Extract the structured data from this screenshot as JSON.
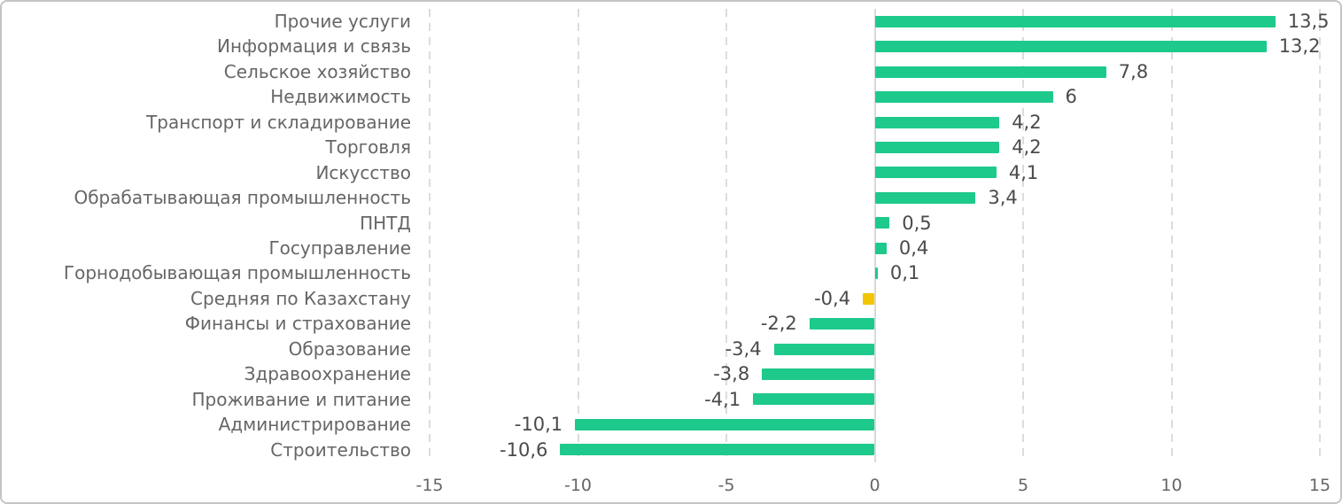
{
  "chart_data": {
    "type": "bar",
    "orientation": "horizontal",
    "title": "",
    "xlabel": "",
    "ylabel": "",
    "xlim": [
      -15,
      15
    ],
    "grid": "dashed-vertical",
    "decimal_separator": ",",
    "categories": [
      "Прочие услуги",
      "Информация и связь",
      "Сельское хозяйство",
      "Недвижимость",
      "Транспорт и складирование",
      "Торговля",
      "Искусство",
      "Обрабатывающая промышленность",
      "ПНТД",
      "Госуправление",
      "Горнодобывающая промышленность",
      "Средняя по Казахстану",
      "Финансы и страхование",
      "Образование",
      "Здравоохранение",
      "Проживание и питание",
      "Администрирование",
      "Строительство"
    ],
    "values": [
      13.5,
      13.2,
      7.8,
      6,
      4.2,
      4.2,
      4.1,
      3.4,
      0.5,
      0.4,
      0.1,
      -0.4,
      -2.2,
      -3.4,
      -3.8,
      -4.1,
      -10.1,
      -10.6
    ],
    "value_labels": [
      "13,5",
      "13,2",
      "7,8",
      "6",
      "4,2",
      "4,2",
      "4,1",
      "3,4",
      "0,5",
      "0,4",
      "0,1",
      "-0,4",
      "-2,2",
      "-3,4",
      "-3,8",
      "-4,1",
      "-10,1",
      "-10,6"
    ],
    "highlight_index": 11,
    "colors": {
      "bar": "#1ec98c",
      "highlight_bar": "#f2c500",
      "grid": "#dcdcdc",
      "zero_line": "#d9d9d9",
      "category_text": "#666666",
      "value_text": "#4a4a4a",
      "tick_text": "#666666"
    },
    "x_ticks": [
      {
        "value": -15,
        "label": "-15"
      },
      {
        "value": -10,
        "label": "-10"
      },
      {
        "value": -5,
        "label": "-5"
      },
      {
        "value": 0,
        "label": "0"
      },
      {
        "value": 5,
        "label": "5"
      },
      {
        "value": 10,
        "label": "10"
      },
      {
        "value": 15,
        "label": "15"
      }
    ]
  }
}
